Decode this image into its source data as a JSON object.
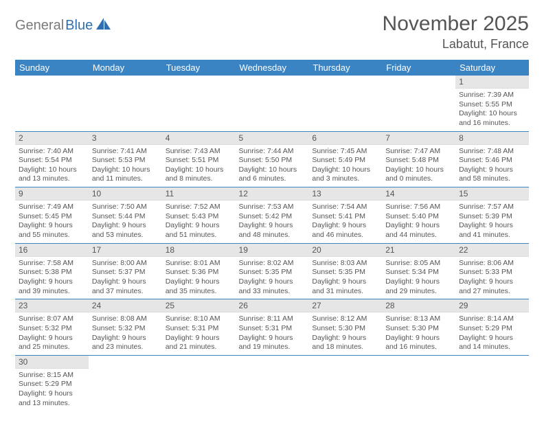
{
  "logo": {
    "gray": "General",
    "blue": "Blue"
  },
  "header": {
    "title": "November 2025",
    "location": "Labatut, France"
  },
  "colors": {
    "header_bg": "#3b84c4",
    "header_text": "#ffffff",
    "daynum_bg": "#e6e6e6",
    "row_border": "#3b84c4",
    "body_text": "#555555",
    "logo_gray": "#7a7a7a",
    "logo_blue": "#2f6fb0"
  },
  "weekdays": [
    "Sunday",
    "Monday",
    "Tuesday",
    "Wednesday",
    "Thursday",
    "Friday",
    "Saturday"
  ],
  "weeks": [
    [
      null,
      null,
      null,
      null,
      null,
      null,
      {
        "n": "1",
        "sr": "Sunrise: 7:39 AM",
        "ss": "Sunset: 5:55 PM",
        "d1": "Daylight: 10 hours",
        "d2": "and 16 minutes."
      }
    ],
    [
      {
        "n": "2",
        "sr": "Sunrise: 7:40 AM",
        "ss": "Sunset: 5:54 PM",
        "d1": "Daylight: 10 hours",
        "d2": "and 13 minutes."
      },
      {
        "n": "3",
        "sr": "Sunrise: 7:41 AM",
        "ss": "Sunset: 5:53 PM",
        "d1": "Daylight: 10 hours",
        "d2": "and 11 minutes."
      },
      {
        "n": "4",
        "sr": "Sunrise: 7:43 AM",
        "ss": "Sunset: 5:51 PM",
        "d1": "Daylight: 10 hours",
        "d2": "and 8 minutes."
      },
      {
        "n": "5",
        "sr": "Sunrise: 7:44 AM",
        "ss": "Sunset: 5:50 PM",
        "d1": "Daylight: 10 hours",
        "d2": "and 6 minutes."
      },
      {
        "n": "6",
        "sr": "Sunrise: 7:45 AM",
        "ss": "Sunset: 5:49 PM",
        "d1": "Daylight: 10 hours",
        "d2": "and 3 minutes."
      },
      {
        "n": "7",
        "sr": "Sunrise: 7:47 AM",
        "ss": "Sunset: 5:48 PM",
        "d1": "Daylight: 10 hours",
        "d2": "and 0 minutes."
      },
      {
        "n": "8",
        "sr": "Sunrise: 7:48 AM",
        "ss": "Sunset: 5:46 PM",
        "d1": "Daylight: 9 hours",
        "d2": "and 58 minutes."
      }
    ],
    [
      {
        "n": "9",
        "sr": "Sunrise: 7:49 AM",
        "ss": "Sunset: 5:45 PM",
        "d1": "Daylight: 9 hours",
        "d2": "and 55 minutes."
      },
      {
        "n": "10",
        "sr": "Sunrise: 7:50 AM",
        "ss": "Sunset: 5:44 PM",
        "d1": "Daylight: 9 hours",
        "d2": "and 53 minutes."
      },
      {
        "n": "11",
        "sr": "Sunrise: 7:52 AM",
        "ss": "Sunset: 5:43 PM",
        "d1": "Daylight: 9 hours",
        "d2": "and 51 minutes."
      },
      {
        "n": "12",
        "sr": "Sunrise: 7:53 AM",
        "ss": "Sunset: 5:42 PM",
        "d1": "Daylight: 9 hours",
        "d2": "and 48 minutes."
      },
      {
        "n": "13",
        "sr": "Sunrise: 7:54 AM",
        "ss": "Sunset: 5:41 PM",
        "d1": "Daylight: 9 hours",
        "d2": "and 46 minutes."
      },
      {
        "n": "14",
        "sr": "Sunrise: 7:56 AM",
        "ss": "Sunset: 5:40 PM",
        "d1": "Daylight: 9 hours",
        "d2": "and 44 minutes."
      },
      {
        "n": "15",
        "sr": "Sunrise: 7:57 AM",
        "ss": "Sunset: 5:39 PM",
        "d1": "Daylight: 9 hours",
        "d2": "and 41 minutes."
      }
    ],
    [
      {
        "n": "16",
        "sr": "Sunrise: 7:58 AM",
        "ss": "Sunset: 5:38 PM",
        "d1": "Daylight: 9 hours",
        "d2": "and 39 minutes."
      },
      {
        "n": "17",
        "sr": "Sunrise: 8:00 AM",
        "ss": "Sunset: 5:37 PM",
        "d1": "Daylight: 9 hours",
        "d2": "and 37 minutes."
      },
      {
        "n": "18",
        "sr": "Sunrise: 8:01 AM",
        "ss": "Sunset: 5:36 PM",
        "d1": "Daylight: 9 hours",
        "d2": "and 35 minutes."
      },
      {
        "n": "19",
        "sr": "Sunrise: 8:02 AM",
        "ss": "Sunset: 5:35 PM",
        "d1": "Daylight: 9 hours",
        "d2": "and 33 minutes."
      },
      {
        "n": "20",
        "sr": "Sunrise: 8:03 AM",
        "ss": "Sunset: 5:35 PM",
        "d1": "Daylight: 9 hours",
        "d2": "and 31 minutes."
      },
      {
        "n": "21",
        "sr": "Sunrise: 8:05 AM",
        "ss": "Sunset: 5:34 PM",
        "d1": "Daylight: 9 hours",
        "d2": "and 29 minutes."
      },
      {
        "n": "22",
        "sr": "Sunrise: 8:06 AM",
        "ss": "Sunset: 5:33 PM",
        "d1": "Daylight: 9 hours",
        "d2": "and 27 minutes."
      }
    ],
    [
      {
        "n": "23",
        "sr": "Sunrise: 8:07 AM",
        "ss": "Sunset: 5:32 PM",
        "d1": "Daylight: 9 hours",
        "d2": "and 25 minutes."
      },
      {
        "n": "24",
        "sr": "Sunrise: 8:08 AM",
        "ss": "Sunset: 5:32 PM",
        "d1": "Daylight: 9 hours",
        "d2": "and 23 minutes."
      },
      {
        "n": "25",
        "sr": "Sunrise: 8:10 AM",
        "ss": "Sunset: 5:31 PM",
        "d1": "Daylight: 9 hours",
        "d2": "and 21 minutes."
      },
      {
        "n": "26",
        "sr": "Sunrise: 8:11 AM",
        "ss": "Sunset: 5:31 PM",
        "d1": "Daylight: 9 hours",
        "d2": "and 19 minutes."
      },
      {
        "n": "27",
        "sr": "Sunrise: 8:12 AM",
        "ss": "Sunset: 5:30 PM",
        "d1": "Daylight: 9 hours",
        "d2": "and 18 minutes."
      },
      {
        "n": "28",
        "sr": "Sunrise: 8:13 AM",
        "ss": "Sunset: 5:30 PM",
        "d1": "Daylight: 9 hours",
        "d2": "and 16 minutes."
      },
      {
        "n": "29",
        "sr": "Sunrise: 8:14 AM",
        "ss": "Sunset: 5:29 PM",
        "d1": "Daylight: 9 hours",
        "d2": "and 14 minutes."
      }
    ],
    [
      {
        "n": "30",
        "sr": "Sunrise: 8:15 AM",
        "ss": "Sunset: 5:29 PM",
        "d1": "Daylight: 9 hours",
        "d2": "and 13 minutes."
      },
      null,
      null,
      null,
      null,
      null,
      null
    ]
  ]
}
